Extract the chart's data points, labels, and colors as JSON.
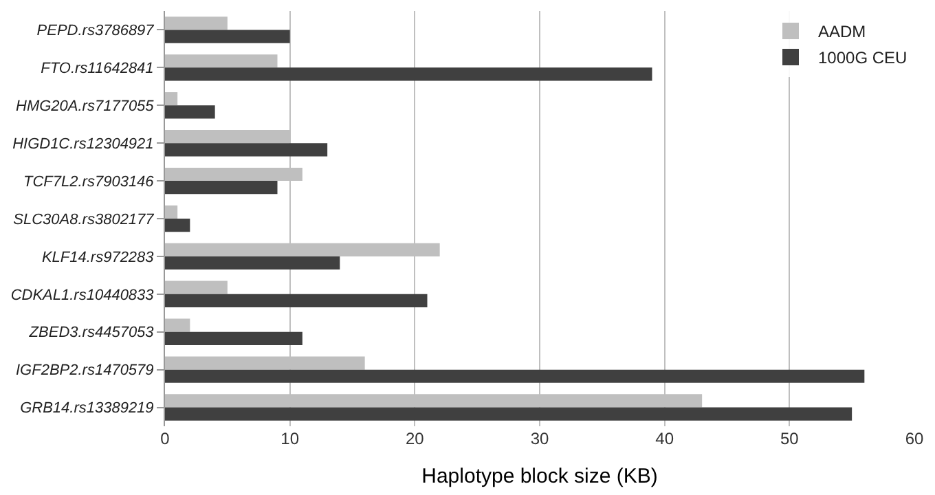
{
  "chart_data": {
    "type": "bar",
    "orientation": "horizontal",
    "xlabel": "Haplotype block size (KB)",
    "categories": [
      "PEPD.rs3786897",
      "FTO.rs11642841",
      "HMG20A.rs7177055",
      "HIGD1C.rs12304921",
      "TCF7L2.rs7903146",
      "SLC30A8.rs3802177",
      "KLF14.rs972283",
      "CDKAL1.rs10440833",
      "ZBED3.rs4457053",
      "IGF2BP2.rs1470579",
      "GRB14.rs13389219"
    ],
    "series": [
      {
        "name": "AADM",
        "color": "#bfbfbf",
        "values": [
          5,
          9,
          1,
          10,
          11,
          1,
          22,
          5,
          2,
          16,
          43
        ]
      },
      {
        "name": "1000G CEU",
        "color": "#404040",
        "values": [
          10,
          39,
          4,
          13,
          9,
          2,
          14,
          21,
          11,
          56,
          55
        ]
      }
    ],
    "xlim": [
      0,
      60
    ],
    "xticks": [
      0,
      10,
      20,
      30,
      40,
      50,
      60
    ],
    "grid": "x",
    "legend": "top right"
  }
}
